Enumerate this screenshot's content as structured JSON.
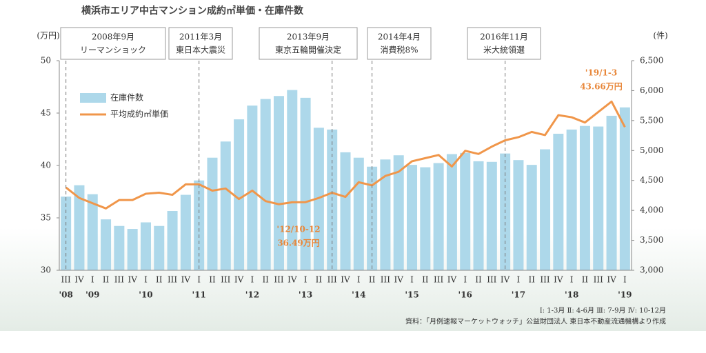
{
  "chart_data": {
    "type": "bar-line",
    "title": "横浜市エリア中古マンション成約㎡単価・在庫件数",
    "y_unit": "(万円)",
    "y2_unit": "(件)",
    "categories": [
      "III",
      "IV",
      "I",
      "II",
      "III",
      "IV",
      "I",
      "II",
      "III",
      "IV",
      "I",
      "II",
      "III",
      "IV",
      "I",
      "II",
      "III",
      "IV",
      "I",
      "II",
      "III",
      "IV",
      "I",
      "II",
      "III",
      "IV",
      "I",
      "II",
      "III",
      "IV",
      "I",
      "II",
      "III",
      "IV",
      "I",
      "II",
      "III",
      "IV",
      "I",
      "II",
      "III",
      "IV",
      "I"
    ],
    "years": [
      "'08",
      null,
      "'09",
      null,
      null,
      null,
      "'10",
      null,
      null,
      null,
      "'11",
      null,
      null,
      null,
      "'12",
      null,
      null,
      null,
      "'13",
      null,
      null,
      null,
      "'14",
      null,
      null,
      null,
      "'15",
      null,
      null,
      null,
      "'16",
      null,
      null,
      null,
      "'17",
      null,
      null,
      null,
      "'18",
      null,
      null,
      null,
      "'19"
    ],
    "series": [
      {
        "name": "在庫件数",
        "color": "#add8ea",
        "axis": "y2",
        "kind": "bar",
        "values": [
          4230,
          4420,
          4270,
          3850,
          3740,
          3690,
          3800,
          3740,
          3990,
          4260,
          4500,
          4880,
          5150,
          5520,
          5750,
          5860,
          5910,
          6010,
          5880,
          5380,
          5350,
          4970,
          4880,
          4730,
          4850,
          4920,
          4760,
          4720,
          4790,
          4940,
          4960,
          4820,
          4810,
          4950,
          4840,
          4760,
          5020,
          5280,
          5350,
          5410,
          5400,
          5580,
          5720
        ]
      },
      {
        "name": "平均成約㎡単価",
        "color": "#f0964a",
        "axis": "y",
        "kind": "line",
        "values": [
          37.9,
          36.9,
          36.4,
          35.9,
          36.7,
          36.7,
          37.3,
          37.4,
          37.2,
          38.2,
          38.2,
          37.6,
          37.8,
          36.8,
          37.6,
          36.6,
          36.3,
          36.49,
          36.5,
          36.9,
          37.4,
          37.0,
          38.4,
          38.1,
          39.0,
          39.4,
          40.4,
          40.7,
          41.0,
          39.9,
          41.4,
          41.1,
          41.8,
          42.4,
          42.7,
          43.2,
          42.9,
          44.8,
          44.6,
          44.1,
          45.1,
          46.1,
          43.66
        ]
      }
    ],
    "ylim": [
      30,
      50
    ],
    "yticks": [
      30,
      35,
      40,
      45,
      50
    ],
    "y2lim": [
      3000,
      6500
    ],
    "y2ticks": [
      {
        "value": 3000,
        "label": "3,000"
      },
      {
        "value": 3500,
        "label": "3,500"
      },
      {
        "value": 4000,
        "label": "4,000"
      },
      {
        "value": 4500,
        "label": "4,500"
      },
      {
        "value": 5000,
        "label": "5,000"
      },
      {
        "value": 5500,
        "label": "5,500"
      },
      {
        "value": 6000,
        "label": "6,000"
      },
      {
        "value": 6500,
        "label": "6,500"
      }
    ],
    "events": [
      {
        "date": "2008年9月",
        "text": "リーマンショック"
      },
      {
        "date": "2011年3月",
        "text": "東日本大震災"
      },
      {
        "date": "2013年9月",
        "text": "東京五輪開催決定"
      },
      {
        "date": "2014年4月",
        "text": "消費税8%"
      },
      {
        "date": "2016年11月",
        "text": "米大統領選"
      }
    ],
    "annotations": [
      {
        "period": "'12/10-12",
        "value_text": "36.49万円"
      },
      {
        "period": "'19/1-3",
        "value_text": "43.66万円"
      }
    ],
    "quarter_note": "Ⅰ: 1-3月 Ⅱ: 4-6月 Ⅲ: 7-9月 Ⅳ: 10-12月",
    "source": "資料：「月例速報マーケットウォッチ」公益財団法人 東日本不動産流通機構より作成"
  }
}
